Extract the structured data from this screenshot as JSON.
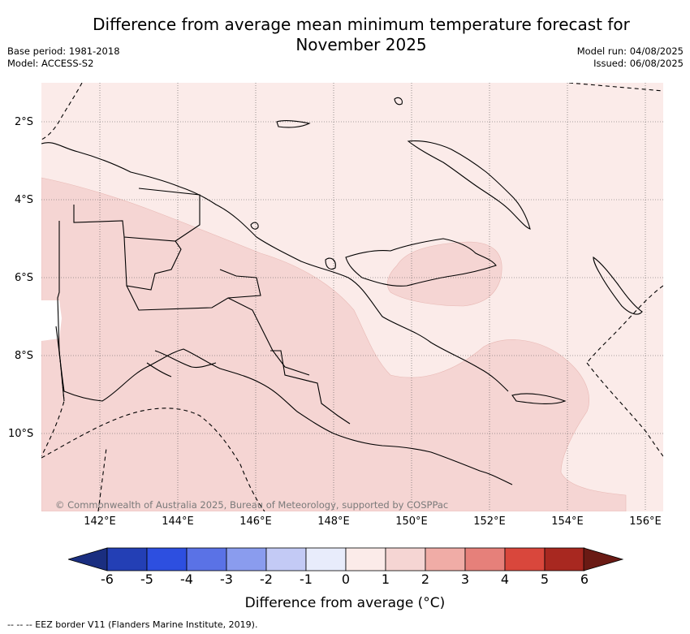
{
  "title": "Difference from average mean minimum temperature forecast for November 2025",
  "meta_left": {
    "base_period": "Base period: 1981-2018",
    "model": "Model: ACCESS-S2"
  },
  "meta_right": {
    "model_run": "Model run: 04/08/2025",
    "issued": "Issued: 06/08/2025"
  },
  "latitude_labels": [
    "2°S",
    "4°S",
    "6°S",
    "8°S",
    "10°S"
  ],
  "longitude_labels": [
    "142°E",
    "144°E",
    "146°E",
    "148°E",
    "150°E",
    "152°E",
    "154°E",
    "156°E"
  ],
  "copyright": "© Commonwealth of Australia 2025, Bureau of Meteorology, supported by COSPPac",
  "colorbar": {
    "label": "Difference from average (°C)",
    "ticks": [
      "-6",
      "-5",
      "-4",
      "-3",
      "-2",
      "-1",
      "0",
      "1",
      "2",
      "3",
      "4",
      "5",
      "6"
    ],
    "colors": [
      "#1a2e80",
      "#233fb5",
      "#2d4fe0",
      "#5a72e6",
      "#8a9cee",
      "#c3caf5",
      "#e8ecfb",
      "#fbebe9",
      "#f5d5d3",
      "#f0aca6",
      "#e6807a",
      "#d9473c",
      "#a82820",
      "#6a1a14"
    ]
  },
  "map": {
    "base_color": "#fbebe9",
    "anomaly_color": "#f5d5d3",
    "anomaly_range": "1 to 2",
    "base_range": "0 to 1"
  },
  "footer": "-- -- -- EEZ border V11 (Flanders Marine Institute, 2019)."
}
